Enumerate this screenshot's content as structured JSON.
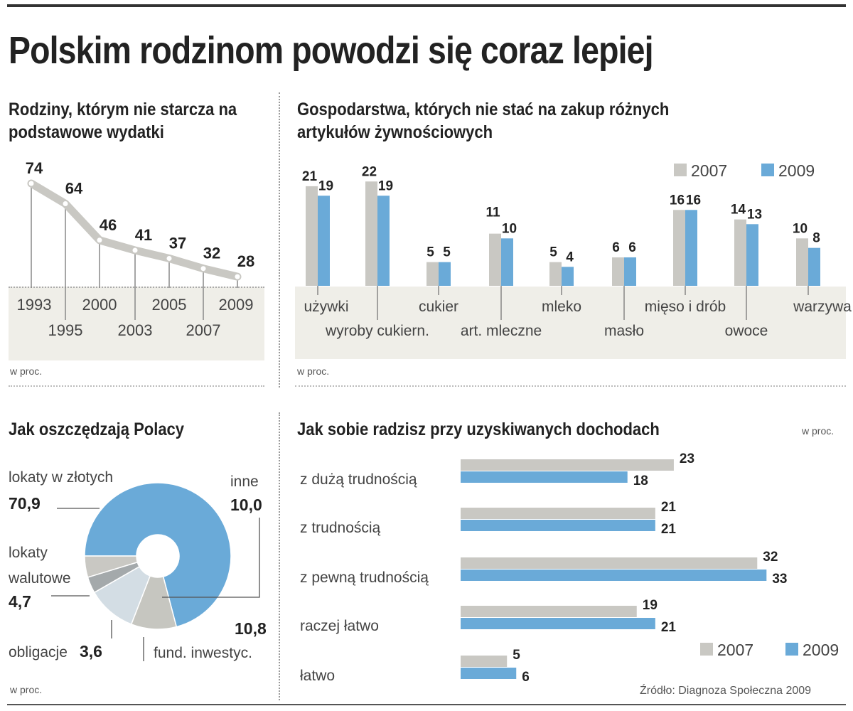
{
  "title": "Polskim rodzinom powodzi się coraz lepiej",
  "unit": "w proc.",
  "source": "Źródło: Diagnoza Społeczna 2009",
  "colors": {
    "blue": "#6aaad8",
    "gray": "#c9c8c3",
    "band": "#efeee8"
  },
  "chart_data": [
    {
      "type": "line",
      "title": "Rodziny, którym nie starcza na podstawowe wydatki",
      "unit": "w proc.",
      "x": [
        "1993",
        "1995",
        "2000",
        "2003",
        "2005",
        "2007",
        "2009"
      ],
      "values": [
        74,
        64,
        46,
        41,
        37,
        32,
        28
      ]
    },
    {
      "type": "bar",
      "title": "Gospodarstwa, których nie stać na zakup różnych artykułów żywnościowych",
      "unit": "w proc.",
      "legend": "top-right",
      "categories": [
        "używki",
        "wyroby cukiern.",
        "cukier",
        "art. mleczne",
        "mleko",
        "masło",
        "mięso i drób",
        "owoce",
        "warzywa"
      ],
      "series": [
        {
          "name": "2007",
          "values": [
            21,
            22,
            5,
            11,
            5,
            6,
            16,
            14,
            10
          ]
        },
        {
          "name": "2009",
          "values": [
            19,
            19,
            5,
            10,
            4,
            6,
            16,
            13,
            8
          ]
        }
      ]
    },
    {
      "type": "pie",
      "title": "Jak oszczędzają Polacy",
      "unit": "w proc.",
      "slices": [
        {
          "label": "lokaty w złotych",
          "value": "70,9"
        },
        {
          "label": "inne",
          "value": "10,0"
        },
        {
          "label": "fund. inwestyc.",
          "value": "10,8"
        },
        {
          "label": "obligacje",
          "value": "3,6"
        },
        {
          "label": "lokaty walutowe",
          "value": "4,7"
        }
      ]
    },
    {
      "type": "bar",
      "orientation": "horizontal",
      "title": "Jak sobie radzisz przy uzyskiwanych dochodach",
      "unit": "w proc.",
      "legend": "bottom-right",
      "categories": [
        "z dużą trudnością",
        "z trudnością",
        "z pewną trudnością",
        "raczej łatwo",
        "łatwo"
      ],
      "series": [
        {
          "name": "2007",
          "values": [
            23,
            21,
            32,
            19,
            5
          ]
        },
        {
          "name": "2009",
          "values": [
            18,
            21,
            33,
            21,
            6
          ]
        }
      ]
    }
  ]
}
